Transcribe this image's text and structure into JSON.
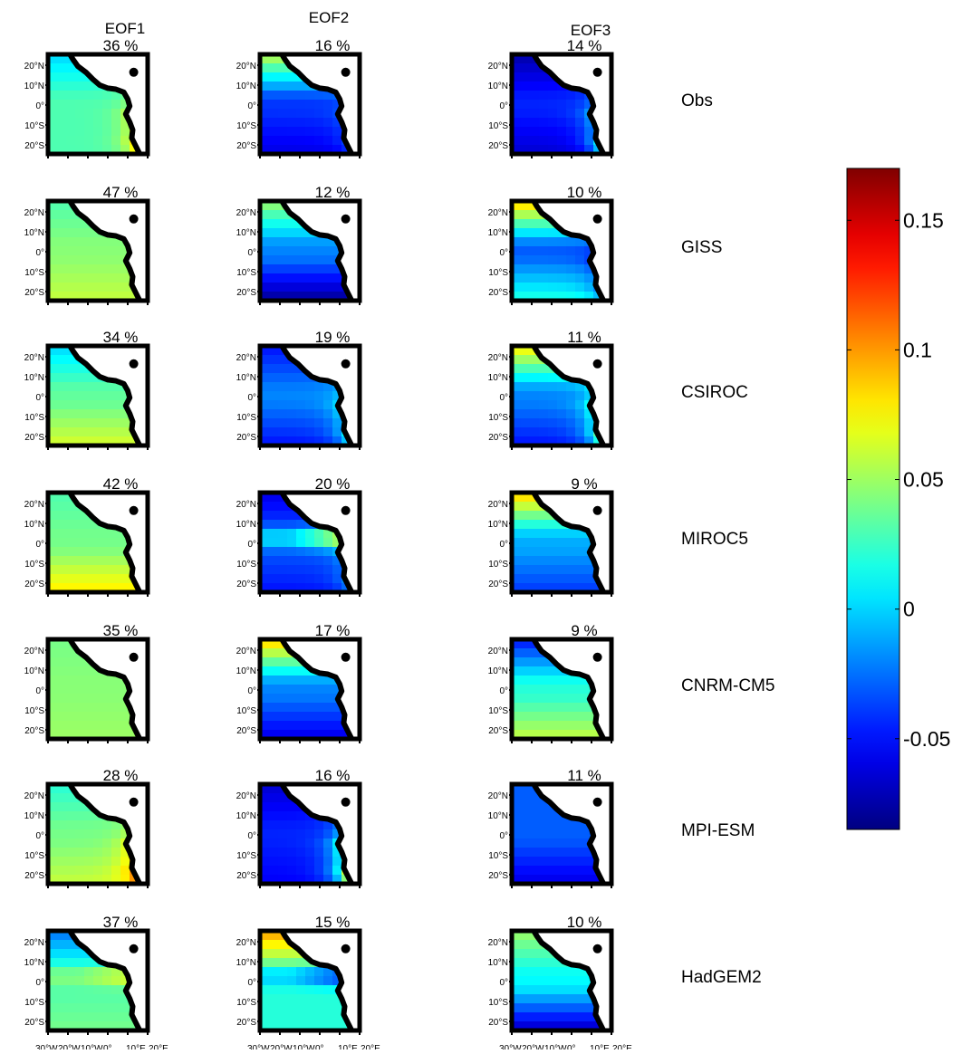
{
  "chart_data": {
    "type": "heatmap",
    "title": "",
    "columns": [
      "EOF1",
      "EOF2",
      "EOF3"
    ],
    "rows": [
      "Obs",
      "GISS",
      "CSIROC",
      "MIROC5",
      "CNRM-CM5",
      "MPI-ESM",
      "HadGEM2"
    ],
    "lat_labels": [
      "20°N",
      "10°N",
      "0°",
      "10°S",
      "20°S"
    ],
    "lon_labels": [
      "30°W",
      "20°W",
      "10°W",
      "0°",
      "10°E",
      "20°E"
    ],
    "explained_variance": [
      [
        "36 %",
        "16 %",
        "14 %"
      ],
      [
        "47 %",
        "12 %",
        "10 %"
      ],
      [
        "34 %",
        "19 %",
        "11 %"
      ],
      [
        "42 %",
        "20 %",
        "9  %"
      ],
      [
        "35 %",
        "17 %",
        "9  %"
      ],
      [
        "28 %",
        "16 %",
        "11 %"
      ],
      [
        "37 %",
        "15 %",
        "10 %"
      ]
    ],
    "patterns": [
      [
        {
          "base": 0.03,
          "north": -0.03,
          "south": 0.0,
          "coast": 0.06
        },
        {
          "base": -0.04,
          "north": 0.1,
          "south": -0.02,
          "coast": 0.02
        },
        {
          "base": -0.045,
          "north": -0.03,
          "south": -0.02,
          "coast": 0.08
        }
      ],
      [
        {
          "base": 0.045,
          "north": -0.015,
          "south": 0.015,
          "coast": 0.0
        },
        {
          "base": -0.02,
          "north": 0.07,
          "south": -0.06,
          "coast": 0.0
        },
        {
          "base": -0.03,
          "north": 0.12,
          "south": 0.05,
          "coast": -0.03
        }
      ],
      [
        {
          "base": 0.035,
          "north": -0.035,
          "south": 0.03,
          "coast": 0.0
        },
        {
          "base": -0.02,
          "north": -0.03,
          "south": -0.03,
          "coast": 0.06
        },
        {
          "base": -0.02,
          "north": 0.1,
          "south": -0.03,
          "coast": 0.09
        }
      ],
      [
        {
          "base": 0.04,
          "north": -0.01,
          "south": 0.04,
          "coast": 0.0
        },
        {
          "base": -0.03,
          "north": -0.03,
          "south": -0.02,
          "coast": 0.03,
          "equator": 0.12
        },
        {
          "base": -0.01,
          "north": 0.1,
          "south": -0.03,
          "coast": 0.0
        }
      ],
      [
        {
          "base": 0.045,
          "north": -0.005,
          "south": 0.005,
          "coast": 0.0
        },
        {
          "base": -0.02,
          "north": 0.11,
          "south": -0.04,
          "coast": 0.0
        },
        {
          "base": 0.02,
          "north": -0.07,
          "south": 0.04,
          "coast": 0.0
        }
      ],
      [
        {
          "base": 0.04,
          "north": -0.02,
          "south": 0.02,
          "coast": 0.06
        },
        {
          "base": -0.045,
          "north": -0.02,
          "south": -0.01,
          "coast": 0.14
        },
        {
          "base": -0.03,
          "north": 0.0,
          "south": -0.03,
          "coast": 0.0
        }
      ],
      [
        {
          "base": 0.03,
          "north": -0.055,
          "south": 0.01,
          "coast": 0.0,
          "equator": 0.05
        },
        {
          "base": 0.02,
          "north": 0.08,
          "south": 0.0,
          "coast": 0.0,
          "equator": -0.08
        },
        {
          "base": 0.01,
          "north": 0.04,
          "south": -0.08,
          "coast": 0.0
        }
      ]
    ],
    "colorbar": {
      "colormap": "jet",
      "min": -0.085,
      "max": 0.17,
      "ticks": [
        -0.05,
        0,
        0.05,
        0.1,
        0.15
      ],
      "tick_labels": [
        "-0.05",
        "0",
        "0.05",
        "0.1",
        "0.15"
      ]
    }
  }
}
